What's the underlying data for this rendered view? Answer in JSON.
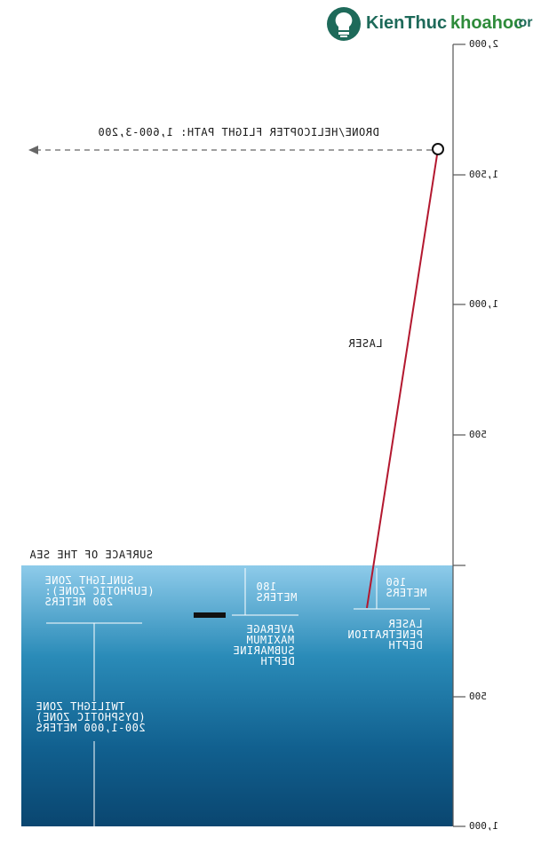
{
  "watermark": {
    "brand_left": "KienThuc",
    "brand_right": "khoahoc",
    "tld": ".org",
    "colors": {
      "brand_left": "#1e6a5a",
      "brand_right": "#2e8b3a",
      "logo": "#1e6a5a"
    }
  },
  "mirrored": true,
  "flight_path": {
    "label": "DRONE/HELICOPTER FLIGHT PATH: 1,600-3,200"
  },
  "laser": {
    "label": "LASER",
    "color": "#b3182f"
  },
  "surface_label": "SURFACE OF THE SEA",
  "scale_above": {
    "ticks": [
      "2,000",
      "1,500",
      "1,000",
      "500"
    ]
  },
  "scale_below": {
    "ticks": [
      "500",
      "1,000"
    ]
  },
  "zones": {
    "sunlight": [
      "SUNLIGHT ZONE",
      "(EUPHOTIC ZONE):",
      "200 METERS"
    ],
    "twilight": [
      "TWILIGHT ZONE",
      "(DYSPHOTIC ZONE)",
      "200-1,000 METERS"
    ]
  },
  "submarine": {
    "depth": [
      "180",
      "METERS"
    ],
    "label": [
      "AVERAGE",
      "MAXIMUM",
      "SUBMARINE",
      "DEPTH"
    ]
  },
  "laser_penetration": {
    "depth": [
      "160",
      "METERS"
    ],
    "label": [
      "LASER",
      "PENETRATION",
      "DEPTH"
    ]
  },
  "colors": {
    "water_top": "#8ecbea",
    "water_mid": "#2a8bb8",
    "water_bottom": "#0a4670",
    "axis": "#555555",
    "arrow": "#666666",
    "submarine": "#111111"
  }
}
